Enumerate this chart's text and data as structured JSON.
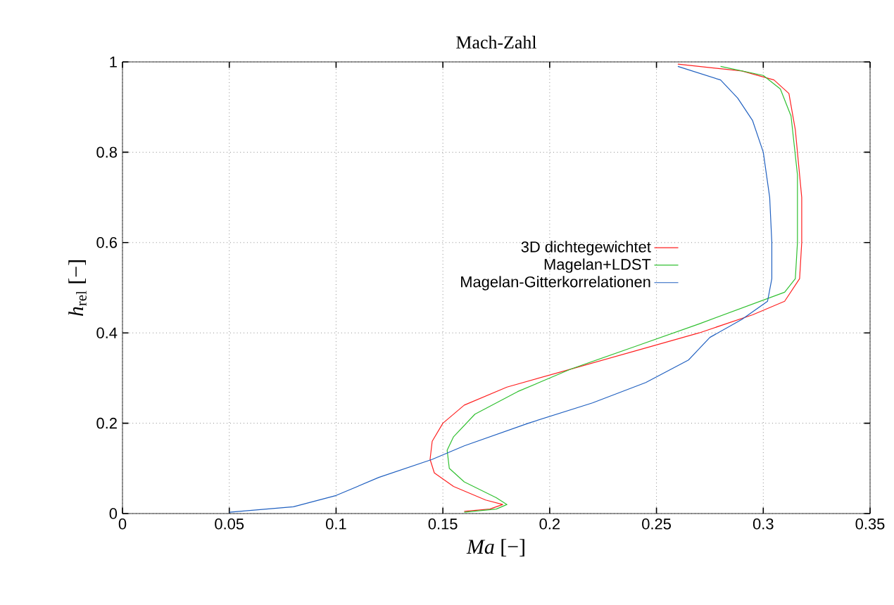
{
  "chart_data": {
    "type": "line",
    "title": "Mach-Zahl",
    "xlabel": "*Ma* [−]",
    "ylabel": "*h*$_{rel}$ [−]",
    "xlim": [
      0,
      0.35
    ],
    "ylim": [
      0,
      1
    ],
    "xticks": [
      0,
      0.05,
      0.1,
      0.15,
      0.2,
      0.25,
      0.3,
      0.35
    ],
    "yticks": [
      0,
      0.2,
      0.4,
      0.6,
      0.8,
      1
    ],
    "grid": true,
    "legend": "right",
    "line_style": "solid",
    "series": [
      {
        "name": "3D dichtegewichtet",
        "color": "#ff2020",
        "x": [
          0.26,
          0.29,
          0.305,
          0.312,
          0.315,
          0.318,
          0.318,
          0.317,
          0.31,
          0.295,
          0.27,
          0.24,
          0.21,
          0.18,
          0.16,
          0.15,
          0.145,
          0.144,
          0.146,
          0.155,
          0.17,
          0.178,
          0.172,
          0.16
        ],
        "values": [
          0.995,
          0.98,
          0.96,
          0.93,
          0.85,
          0.7,
          0.6,
          0.52,
          0.47,
          0.44,
          0.4,
          0.36,
          0.32,
          0.28,
          0.24,
          0.2,
          0.16,
          0.12,
          0.09,
          0.06,
          0.03,
          0.02,
          0.01,
          0.005
        ]
      },
      {
        "name": "Magelan+LDST",
        "color": "#30c030",
        "x": [
          0.28,
          0.3,
          0.308,
          0.313,
          0.316,
          0.316,
          0.315,
          0.31,
          0.29,
          0.27,
          0.24,
          0.21,
          0.185,
          0.165,
          0.155,
          0.152,
          0.153,
          0.16,
          0.175,
          0.18,
          0.175,
          0.16
        ],
        "values": [
          0.99,
          0.97,
          0.94,
          0.88,
          0.75,
          0.6,
          0.52,
          0.49,
          0.455,
          0.42,
          0.37,
          0.32,
          0.27,
          0.22,
          0.17,
          0.14,
          0.1,
          0.07,
          0.035,
          0.02,
          0.01,
          0.003
        ]
      },
      {
        "name": "Magelan-Gitterkorrelationen",
        "color": "#2060c0",
        "x": [
          0.26,
          0.28,
          0.288,
          0.295,
          0.3,
          0.303,
          0.304,
          0.304,
          0.302,
          0.29,
          0.275,
          0.265,
          0.245,
          0.22,
          0.19,
          0.16,
          0.145,
          0.12,
          0.1,
          0.08,
          0.05
        ],
        "values": [
          0.99,
          0.96,
          0.92,
          0.87,
          0.8,
          0.7,
          0.6,
          0.52,
          0.47,
          0.43,
          0.39,
          0.34,
          0.29,
          0.245,
          0.2,
          0.15,
          0.12,
          0.08,
          0.04,
          0.015,
          0.003
        ]
      }
    ]
  }
}
